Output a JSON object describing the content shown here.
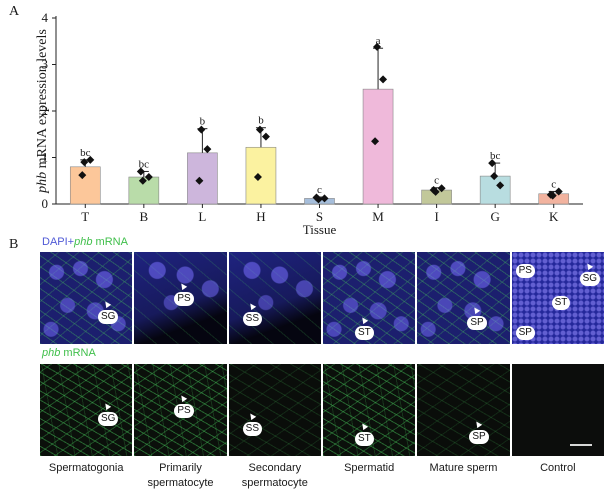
{
  "panel_a": {
    "letter": "A"
  },
  "panel_b": {
    "letter": "B"
  },
  "chart_data": {
    "type": "bar",
    "title": "",
    "xlabel": "Tissue",
    "ylabel": "phb mRNA expression levels",
    "ylabel_italic": "phb",
    "ylabel_rest": " mRNA expression levels",
    "ylim": [
      0,
      4
    ],
    "yticks": [
      0,
      1,
      2,
      3,
      4
    ],
    "categories": [
      "T",
      "B",
      "L",
      "H",
      "S",
      "M",
      "I",
      "G",
      "K"
    ],
    "values": [
      0.8,
      0.58,
      1.1,
      1.22,
      0.12,
      2.47,
      0.3,
      0.6,
      0.22
    ],
    "errors": [
      0.15,
      0.12,
      0.52,
      0.42,
      0.03,
      0.88,
      0.05,
      0.28,
      0.05
    ],
    "significance": [
      "bc",
      "bc",
      "b",
      "b",
      "c",
      "a",
      "c",
      "bc",
      "c"
    ],
    "points": [
      [
        0.9,
        0.95,
        0.62
      ],
      [
        0.5,
        0.58,
        0.7
      ],
      [
        1.6,
        1.18,
        0.5
      ],
      [
        1.6,
        1.45,
        0.58
      ],
      [
        0.1,
        0.12,
        0.14
      ],
      [
        3.38,
        2.68,
        1.35
      ],
      [
        0.26,
        0.34,
        0.3
      ],
      [
        0.6,
        0.4,
        0.88
      ],
      [
        0.18,
        0.27,
        0.2
      ]
    ],
    "colors": [
      "#fcc79a",
      "#b9dca9",
      "#cdb6dc",
      "#fbf2a0",
      "#a6bedb",
      "#efb9da",
      "#c2c89a",
      "#b8dde0",
      "#f2b39f"
    ]
  },
  "micrographs": {
    "top_label_prefix": "DAPI+",
    "top_label_italic": "phb",
    "top_label_suffix": " mRNA",
    "bottom_label_italic": "phb",
    "bottom_label_suffix": " mRNA",
    "top_tags": [
      [
        "SG"
      ],
      [
        "PS"
      ],
      [
        "SS"
      ],
      [
        "ST"
      ],
      [
        "SP"
      ],
      [
        "PS",
        "SG",
        "ST",
        "SP"
      ]
    ],
    "bottom_tags": [
      [
        "SG"
      ],
      [
        "PS"
      ],
      [
        "SS"
      ],
      [
        "ST"
      ],
      [
        "SP"
      ],
      []
    ],
    "captions": [
      "Spermatogonia",
      "Primarily spermatocyte",
      "Secondary spermatocyte",
      "Spermatid",
      "Mature sperm",
      "Control"
    ]
  },
  "colors": {
    "blue_label": "#4f59d6",
    "green_label": "#3fbf4a"
  }
}
